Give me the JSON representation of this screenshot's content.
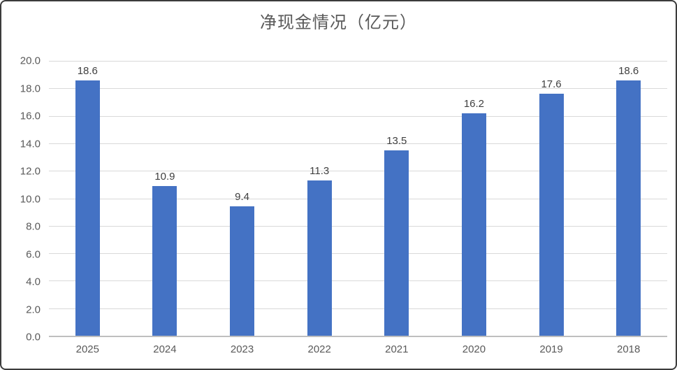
{
  "chart_data": {
    "type": "bar",
    "title": "净现金情况（亿元）",
    "categories": [
      "2025",
      "2024",
      "2023",
      "2022",
      "2021",
      "2020",
      "2019",
      "2018"
    ],
    "values": [
      18.6,
      10.9,
      9.4,
      11.3,
      13.5,
      16.2,
      17.6,
      18.6
    ],
    "value_labels": [
      "18.6",
      "10.9",
      "9.4",
      "11.3",
      "13.5",
      "16.2",
      "17.6",
      "18.6"
    ],
    "ylim": [
      0,
      20
    ],
    "ytick_step": 2,
    "ytick_labels": [
      "20.0",
      "18.0",
      "16.0",
      "14.0",
      "12.0",
      "10.0",
      "8.0",
      "6.0",
      "4.0",
      "2.0",
      "0.0"
    ],
    "grid": true,
    "legend": false,
    "xlabel": "",
    "ylabel": "",
    "colors": {
      "bar": "#4472c4",
      "gridline": "#d9d9d9",
      "axis_line": "#bfbfbf",
      "title_text": "#595959",
      "tick_text": "#595959",
      "value_label_text": "#404040",
      "frame_border": "#3b3b3b",
      "background": "#ffffff"
    }
  }
}
